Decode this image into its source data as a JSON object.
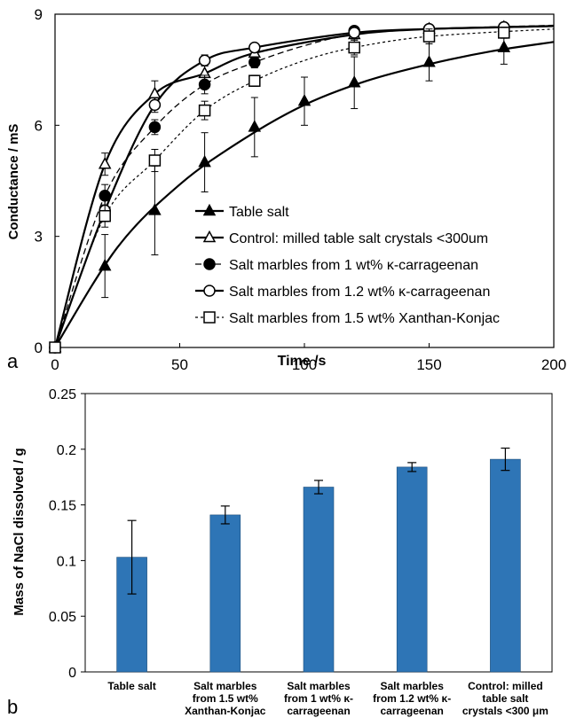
{
  "chart_data": [
    {
      "type": "line",
      "panel_label": "a",
      "xlabel": "Time /s",
      "ylabel": "Conductance / mS",
      "xlim": [
        0,
        200
      ],
      "ylim": [
        0,
        9
      ],
      "x_ticks": [
        "0",
        "50",
        "100",
        "150",
        "200"
      ],
      "y_ticks": [
        "0",
        "3",
        "6",
        "9"
      ],
      "grid": false,
      "legend_position": "bottom-right",
      "series": [
        {
          "name": "Table salt",
          "marker": "filled-triangle",
          "line": "solid-thick",
          "points": [
            [
              0,
              0
            ],
            [
              20,
              2.2
            ],
            [
              40,
              3.7
            ],
            [
              60,
              5.0
            ],
            [
              80,
              5.95
            ],
            [
              100,
              6.65
            ],
            [
              120,
              7.15
            ],
            [
              150,
              7.7
            ],
            [
              180,
              8.1
            ]
          ],
          "errors": [
            0,
            0.85,
            1.2,
            0.8,
            0.8,
            0.65,
            0.7,
            0.5,
            0.45
          ],
          "curve": [
            [
              0,
              0
            ],
            [
              25,
              2.7
            ],
            [
              50,
              4.4
            ],
            [
              75,
              5.6
            ],
            [
              100,
              6.55
            ],
            [
              125,
              7.2
            ],
            [
              150,
              7.65
            ],
            [
              175,
              8.0
            ],
            [
              200,
              8.25
            ]
          ]
        },
        {
          "name": "Control: milled table salt crystals <300um",
          "marker": "open-triangle",
          "line": "solid-thick",
          "points": [
            [
              0,
              0
            ],
            [
              20,
              4.95
            ],
            [
              40,
              6.85
            ],
            [
              60,
              7.4
            ],
            [
              80,
              7.95
            ],
            [
              120,
              8.45
            ],
            [
              150,
              8.6
            ],
            [
              180,
              8.65
            ]
          ],
          "errors": [
            0,
            0.3,
            0.35,
            0.2,
            0.15,
            0.15,
            0.1,
            0.1
          ],
          "curve": [
            [
              0,
              0
            ],
            [
              20,
              4.95
            ],
            [
              40,
              6.85
            ],
            [
              60,
              7.4
            ],
            [
              80,
              7.95
            ],
            [
              120,
              8.45
            ],
            [
              150,
              8.6
            ],
            [
              180,
              8.65
            ],
            [
              200,
              8.68
            ]
          ]
        },
        {
          "name": "Salt marbles from 1 wt% κ-carrageenan",
          "marker": "filled-circle",
          "line": "dash",
          "points": [
            [
              0,
              0
            ],
            [
              20,
              4.1
            ],
            [
              40,
              5.95
            ],
            [
              60,
              7.1
            ],
            [
              80,
              7.7
            ],
            [
              120,
              8.55
            ],
            [
              150,
              8.6
            ],
            [
              180,
              8.65
            ]
          ],
          "errors": [
            0,
            0.3,
            0.2,
            0.25,
            0.15,
            0.1,
            0.1,
            0.1
          ],
          "curve": [
            [
              0,
              0
            ],
            [
              20,
              4.1
            ],
            [
              40,
              5.95
            ],
            [
              60,
              7.1
            ],
            [
              80,
              7.7
            ],
            [
              100,
              8.15
            ],
            [
              120,
              8.45
            ],
            [
              150,
              8.6
            ],
            [
              200,
              8.7
            ]
          ]
        },
        {
          "name": "Salt marbles from 1.2 wt%  κ-carrageenan",
          "marker": "open-circle",
          "line": "solid-thick",
          "points": [
            [
              0,
              0
            ],
            [
              20,
              3.7
            ],
            [
              40,
              6.55
            ],
            [
              60,
              7.75
            ],
            [
              80,
              8.1
            ],
            [
              120,
              8.5
            ],
            [
              150,
              8.6
            ],
            [
              180,
              8.65
            ]
          ],
          "errors": [
            0,
            0.3,
            0.2,
            0.15,
            0.1,
            0.1,
            0.1,
            0.1
          ],
          "curve": [
            [
              0,
              0
            ],
            [
              20,
              3.7
            ],
            [
              40,
              6.55
            ],
            [
              60,
              7.75
            ],
            [
              80,
              8.1
            ],
            [
              120,
              8.5
            ],
            [
              150,
              8.6
            ],
            [
              180,
              8.65
            ],
            [
              200,
              8.68
            ]
          ]
        },
        {
          "name": "Salt marbles from 1.5 wt% Xanthan-Konjac",
          "marker": "open-square",
          "line": "dot",
          "points": [
            [
              0,
              0
            ],
            [
              20,
              3.55
            ],
            [
              40,
              5.05
            ],
            [
              60,
              6.4
            ],
            [
              80,
              7.2
            ],
            [
              120,
              8.1
            ],
            [
              150,
              8.4
            ],
            [
              180,
              8.5
            ]
          ],
          "errors": [
            0,
            0.3,
            0.3,
            0.25,
            0.15,
            0.2,
            0.2,
            0.15
          ],
          "curve": [
            [
              0,
              0
            ],
            [
              20,
              3.55
            ],
            [
              40,
              5.05
            ],
            [
              60,
              6.4
            ],
            [
              80,
              7.2
            ],
            [
              100,
              7.75
            ],
            [
              120,
              8.1
            ],
            [
              150,
              8.4
            ],
            [
              200,
              8.6
            ]
          ]
        }
      ]
    },
    {
      "type": "bar",
      "panel_label": "b",
      "ylabel": "Mass of NaCl dissolved / g",
      "xlabel": "",
      "ylim": [
        0,
        0.25
      ],
      "y_ticks": [
        "0",
        "0.05",
        "0.1",
        "0.15",
        "0.2",
        "0.25"
      ],
      "grid": false,
      "bar_color": "#2e75b6",
      "categories": [
        [
          "Table salt"
        ],
        [
          "Salt marbles",
          "from 1.5 wt%",
          "Xanthan-Konjac"
        ],
        [
          "Salt marbles",
          "from 1 wt% κ-",
          "carrageenan"
        ],
        [
          "Salt marbles",
          "from 1.2 wt% κ-",
          "carrageenan"
        ],
        [
          "Control: milled",
          "table salt",
          "crystals <300 μm"
        ]
      ],
      "values": [
        0.103,
        0.141,
        0.166,
        0.184,
        0.191
      ],
      "errors": [
        0.033,
        0.008,
        0.006,
        0.004,
        0.01
      ]
    }
  ]
}
